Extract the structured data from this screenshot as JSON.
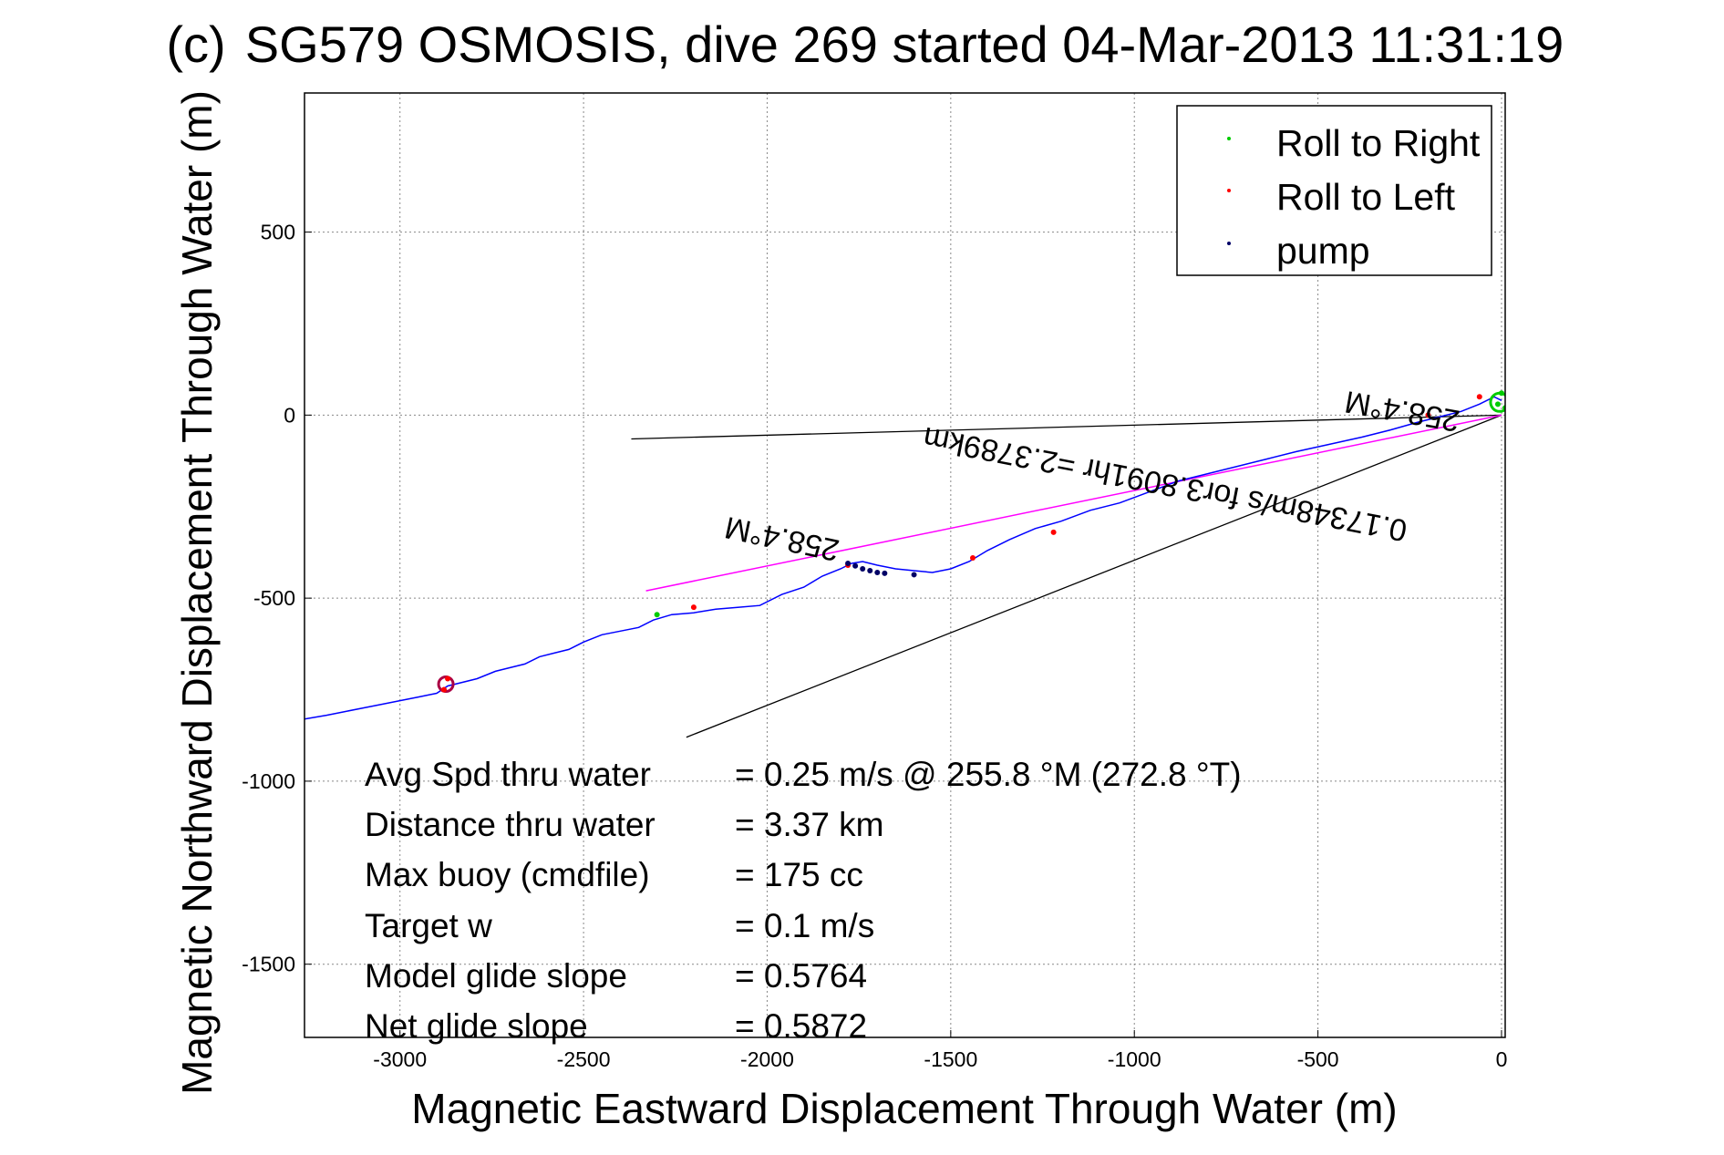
{
  "chart_data": {
    "type": "line",
    "title": "SG579 OSMOSIS, dive 269 started 04-Mar-2013 11:31:19",
    "title_overlap_glyph": "(c)",
    "xlabel": "Magnetic Eastward Displacement Through Water (m)",
    "ylabel": "Magnetic Northward Displacement Through Water (m)",
    "xlim": [
      -3260,
      10
    ],
    "ylim": [
      -1700,
      880
    ],
    "xticks": [
      -3000,
      -2500,
      -2000,
      -1500,
      -1000,
      -500,
      0
    ],
    "yticks": [
      500,
      0,
      -500,
      -1000,
      -1500
    ],
    "grid": true,
    "legend_position": "top-right",
    "legend": [
      {
        "label": "Roll to Right",
        "color": "#00cc00"
      },
      {
        "label": "Roll to Left",
        "color": "#ff0000"
      },
      {
        "label": "pump",
        "color": "#000066"
      }
    ],
    "colors": {
      "track": "#0000ff",
      "roll_right": "#00cc00",
      "roll_left": "#ff0000",
      "pump": "#000066",
      "heading_line": "#ff00ff",
      "reference_lines": "#000000"
    },
    "series": [
      {
        "name": "track",
        "x": [
          0,
          -20,
          -60,
          -110,
          -170,
          -230,
          -300,
          -380,
          -470,
          -560,
          -640,
          -720,
          -800,
          -880,
          -960,
          -1040,
          -1120,
          -1200,
          -1270,
          -1340,
          -1400,
          -1450,
          -1500,
          -1550,
          -1600,
          -1650,
          -1700,
          -1740,
          -1770,
          -1800,
          -1850,
          -1900,
          -1960,
          -2020,
          -2080,
          -2140,
          -2200,
          -2260,
          -2310,
          -2350,
          -2400,
          -2450,
          -2500,
          -2540,
          -2580,
          -2620,
          -2660,
          -2700,
          -2740,
          -2790,
          -2830,
          -2870,
          -2900,
          -2950,
          -3000,
          -3050,
          -3100,
          -3150,
          -3200,
          -3260
        ],
        "y": [
          40,
          50,
          30,
          10,
          -5,
          -20,
          -40,
          -60,
          -80,
          -100,
          -120,
          -140,
          -160,
          -180,
          -210,
          -240,
          -260,
          -290,
          -310,
          -340,
          -370,
          -400,
          -420,
          -430,
          -425,
          -420,
          -410,
          -400,
          -405,
          -420,
          -440,
          -470,
          -490,
          -520,
          -525,
          -530,
          -540,
          -545,
          -560,
          -580,
          -590,
          -600,
          -620,
          -640,
          -650,
          -660,
          -680,
          -690,
          -700,
          -720,
          -730,
          -740,
          -760,
          -770,
          -780,
          -790,
          -800,
          -810,
          -820,
          -830
        ]
      },
      {
        "name": "Roll to Right",
        "x": [
          0,
          10,
          -10,
          -2300
        ],
        "y": [
          60,
          20,
          30,
          -545
        ]
      },
      {
        "name": "Roll to Left",
        "x": [
          -60,
          -200,
          -1220,
          -1440,
          -2200,
          -1780,
          -2870,
          -2880
        ],
        "y": [
          50,
          0,
          -320,
          -390,
          -525,
          -410,
          -720,
          -750
        ]
      },
      {
        "name": "pump",
        "x": [
          -1780,
          -1760,
          -1740,
          -1720,
          -1700,
          -1680,
          -1600
        ],
        "y": [
          -405,
          -412,
          -420,
          -425,
          -430,
          -432,
          -436
        ]
      }
    ],
    "heading_line": {
      "x": [
        0,
        -2330
      ],
      "y": [
        0,
        -480
      ]
    },
    "reference_lines": [
      {
        "x": [
          0,
          -2370
        ],
        "y": [
          0,
          -65
        ]
      },
      {
        "x": [
          0,
          -2220
        ],
        "y": [
          0,
          -880
        ]
      }
    ],
    "annotations": [
      "258.4°M",
      "0.17348m/s for3.8091hr =2.3789km",
      "258.4°M"
    ],
    "stats": [
      {
        "label": "Avg Spd thru water",
        "value": "=  0.25 m/s @ 255.8 °M (272.8 °T)"
      },
      {
        "label": "Distance thru water",
        "value": "=  3.37 km"
      },
      {
        "label": "Max buoy (cmdfile)",
        "value": "= 175 cc"
      },
      {
        "label": "Target w",
        "value": "= 0.1 m/s"
      },
      {
        "label": "Model glide slope",
        "value": "= 0.5764"
      },
      {
        "label": "Net glide slope",
        "value": "= 0.5872"
      }
    ]
  }
}
